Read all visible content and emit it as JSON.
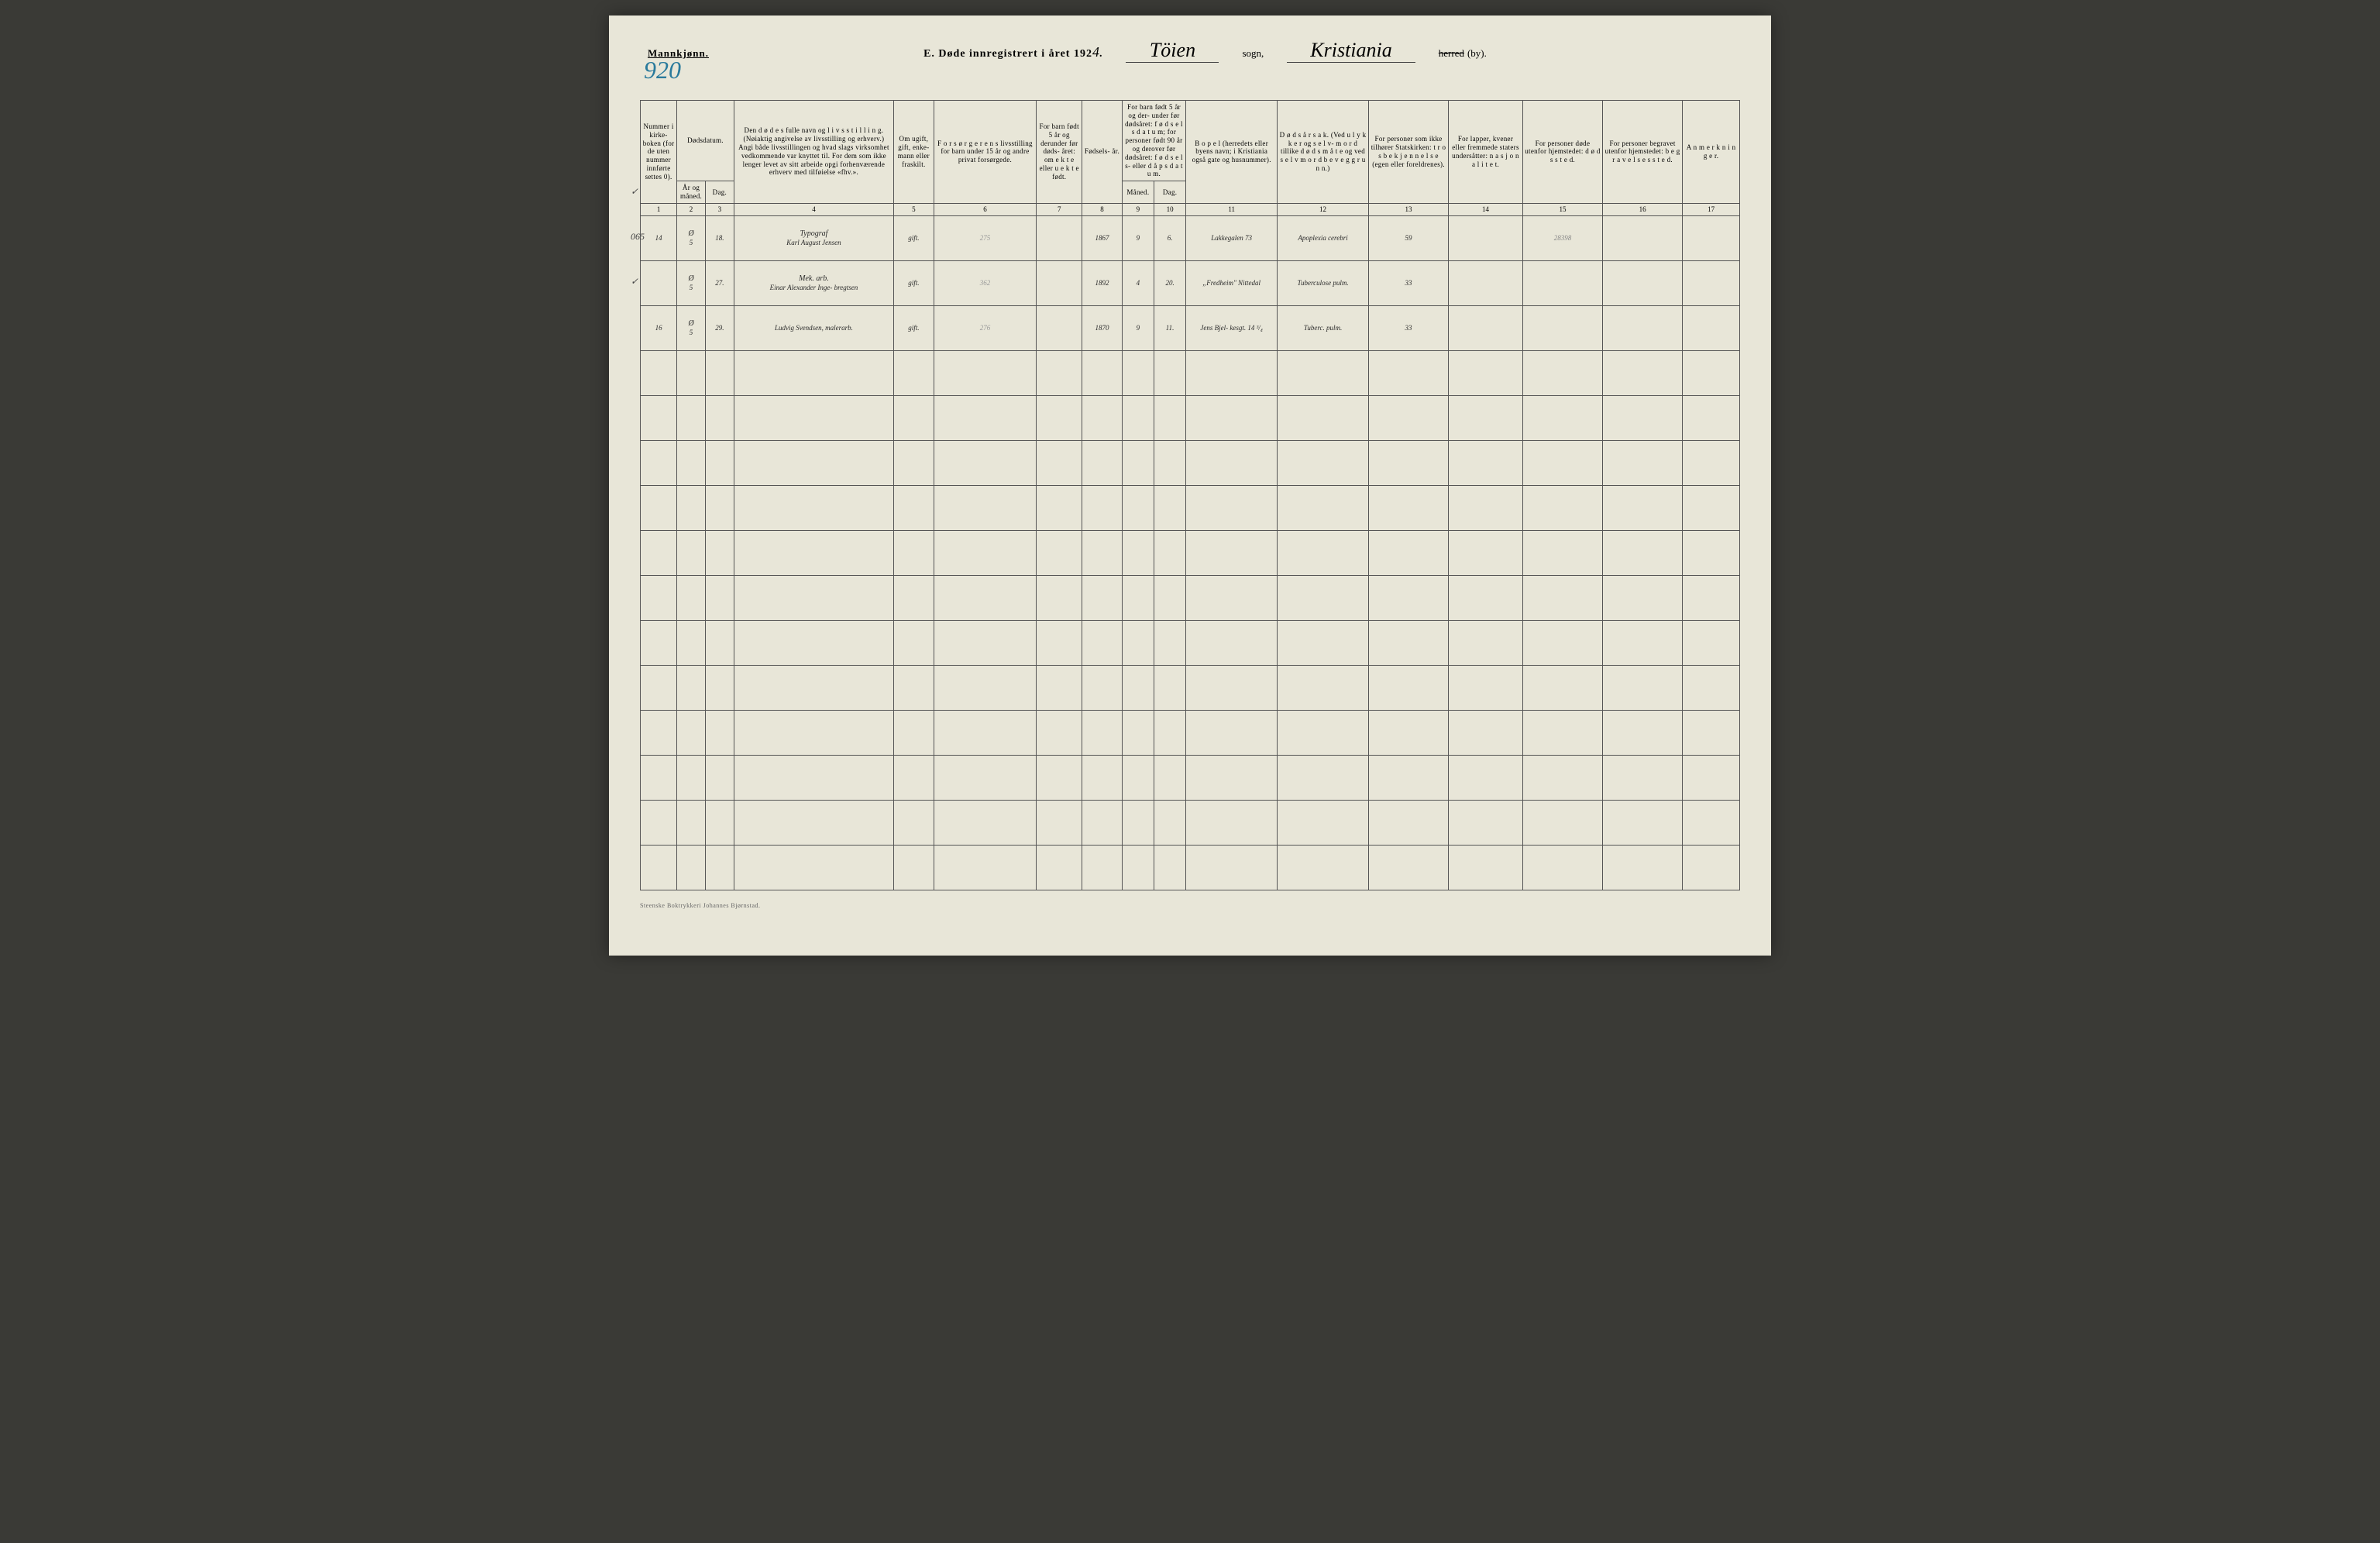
{
  "header": {
    "gender": "Mannkjønn.",
    "page_number_left": "920",
    "title_prefix": "E.  Døde innregistrert i året 192",
    "year_digit": "4",
    "sogn_name": "Töien",
    "sogn_label": "sogn,",
    "city_name": "Kristiania",
    "herred_label": "herred",
    "by_label": "(by)."
  },
  "columns": {
    "c1": "Nummer i kirke- boken (for de uten nummer innførte settes 0).",
    "c2_group": "Dødsdatum.",
    "c2": "År og måned.",
    "c3": "Dag.",
    "c4": "Den d ø d e s fulle navn og l i v s s t i l l i n g. (Nøiaktig angivelse av livsstilling og erhverv.) Angi både livsstillingen og hvad slags virksomhet vedkommende var knyttet til. For dem som ikke lenger levet av sitt arbeide opgi forhenværende erhverv med tilføielse «fhv.».",
    "c5": "Om ugift, gift, enke- mann eller fraskilt.",
    "c6": "F o r s ø r g e r e n s livsstilling for barn under 15 år og andre privat forsørgede.",
    "c7": "For barn født 5 år og derunder før døds- året: om e k t e eller u e k t e født.",
    "c8": "Fødsels- år.",
    "c9_10_group": "For barn født 5 år og der- under før dødsåret: f ø d s e l s d a t u m; for personer født 90 år og derover før dødsåret: f ø d s e l s- eller d å p s d a t u m.",
    "c9": "Måned.",
    "c10": "Dag.",
    "c11": "B o p e l (herredets eller byens navn; i Kristiania også gate og husnummer).",
    "c12": "D ø d s å r s a k. (Ved u l y k k e r og s e l v- m o r d tillike d ø d s m å t e og ved s e l v m o r d b e v e g g r u n n.)",
    "c13": "For personer som ikke tilhører Statskirken: t r o s b e k j e n n e l s e (egen eller foreldrenes).",
    "c14": "For lapper, kvener eller fremmede staters undersåtter: n a s j o n a l i t e t.",
    "c15": "For personer døde utenfor hjemstedet: d ø d s s t e d.",
    "c16": "For personer begravet utenfor hjemstedet: b e g r a v e l s e s s t e d.",
    "c17": "A n m e r k n i n g e r."
  },
  "colnums": [
    "1",
    "2",
    "3",
    "4",
    "5",
    "6",
    "7",
    "8",
    "9",
    "10",
    "11",
    "12",
    "13",
    "14",
    "15",
    "16",
    "17"
  ],
  "rows": [
    {
      "edge": "✓",
      "c1": "14",
      "c2": "5",
      "c2_top": "Ø",
      "c3": "18.",
      "c4_top": "Typograf",
      "c4": "Karl August Jensen",
      "c5": "gift.",
      "c6": "275",
      "c7": "",
      "c8": "1867",
      "c9": "9",
      "c10": "6.",
      "c11": "Lakkegalen 73",
      "c12": "Apoplexia cerebri",
      "c13": "59",
      "c14": "",
      "c15": "28398",
      "c16": "",
      "c17": ""
    },
    {
      "edge": "065",
      "edge_class": "blue-ink",
      "c1": "",
      "c2": "5",
      "c2_top": "Ø",
      "c3": "27.",
      "c4_top": "Mek. arb.",
      "c4": "Einar Alexander Inge- bregtsen",
      "c5": "gift.",
      "c6": "362",
      "c7": "",
      "c8": "1892",
      "c9": "4",
      "c10": "20.",
      "c11": "„Fredheim\" Nittedal",
      "c12": "Tuberculose pulm.",
      "c13": "33",
      "c14": "",
      "c15": "",
      "c16": "",
      "c17": ""
    },
    {
      "edge": "✓",
      "c1": "16",
      "c2": "5",
      "c2_top": "Ø",
      "c3": "29.",
      "c4_top": "",
      "c4": "Ludvig Svendsen, malerarb.",
      "c5": "gift.",
      "c6": "276",
      "c7": "",
      "c8": "1870",
      "c9": "9",
      "c10": "11.",
      "c11": "Jens Bjel- kesgt. 14 ³/₄",
      "c12": "Tuberc. pulm.",
      "c13": "33",
      "c14": "",
      "c15": "",
      "c16": "",
      "c17": ""
    }
  ],
  "empty_rows": 12,
  "footer": "Steenske Boktrykkeri Johannes Bjørnstad."
}
